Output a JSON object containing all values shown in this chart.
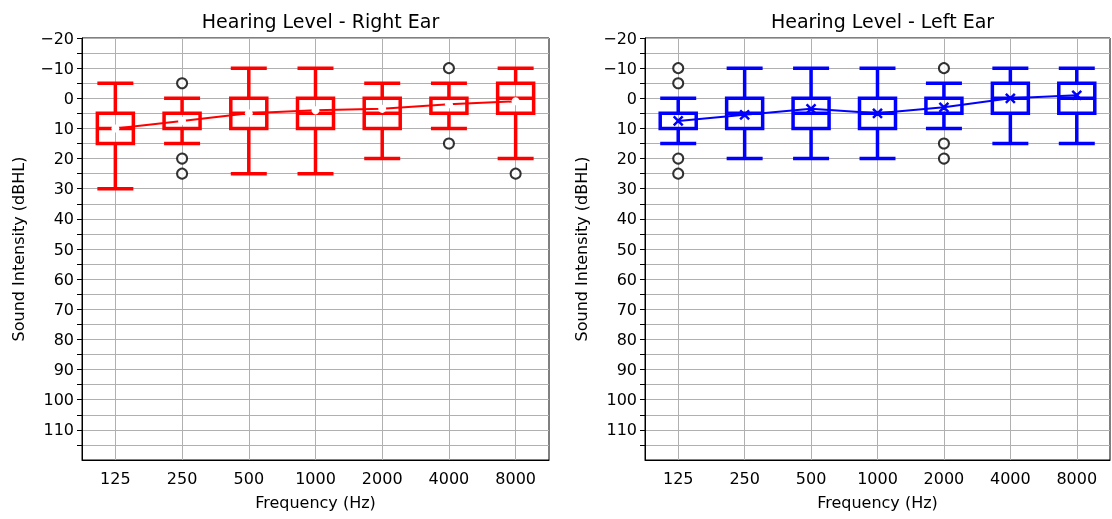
{
  "chart_data": [
    {
      "type": "box",
      "title": "Hearing Level - Right Ear",
      "xlabel": "Frequency (Hz)",
      "ylabel": "Sound Intensity (dBHL)",
      "categories": [
        "125",
        "250",
        "500",
        "1000",
        "2000",
        "4000",
        "8000"
      ],
      "ylim": [
        120,
        -20
      ],
      "yticks": [
        {
          "value": -20,
          "label": "−20"
        },
        {
          "value": -15,
          "label": null
        },
        {
          "value": -10,
          "label": "−10"
        },
        {
          "value": -5,
          "label": null
        },
        0,
        {
          "value": 5,
          "label": null
        },
        10,
        {
          "value": 15,
          "label": null
        },
        20,
        {
          "value": 25,
          "label": null
        },
        30,
        {
          "value": 35,
          "label": null
        },
        40,
        {
          "value": 45,
          "label": null
        },
        50,
        {
          "value": 55,
          "label": null
        },
        60,
        {
          "value": 65,
          "label": null
        },
        70,
        {
          "value": 75,
          "label": null
        },
        80,
        {
          "value": 85,
          "label": null
        },
        90,
        {
          "value": 95,
          "label": null
        },
        100,
        {
          "value": 105,
          "label": null
        },
        110,
        {
          "value": 115,
          "label": null
        }
      ],
      "grid": true,
      "series": [
        {
          "type": "box",
          "color": "#ff0000",
          "boxes": [
            {
              "low": 30,
              "q1": 15,
              "median": 10,
              "q3": 5,
              "high": -5
            },
            {
              "low": 15,
              "q1": 10,
              "median": 5,
              "q3": 5,
              "high": 0,
              "outliers": [
                -5,
                20,
                25
              ]
            },
            {
              "low": 25,
              "q1": 10,
              "median": 5,
              "q3": 0,
              "high": -10
            },
            {
              "low": 25,
              "q1": 10,
              "median": 5,
              "q3": 0,
              "high": -10
            },
            {
              "low": 20,
              "q1": 10,
              "median": 5,
              "q3": 0,
              "high": -5
            },
            {
              "low": 10,
              "q1": 5,
              "median": 5,
              "q3": 0,
              "high": -5,
              "outliers": [
                -10,
                15
              ]
            },
            {
              "low": 20,
              "q1": 5,
              "median": 0,
              "q3": -5,
              "high": -10,
              "outliers": [
                25
              ]
            }
          ]
        },
        {
          "type": "line",
          "color": "#ff0000",
          "marker": "circle",
          "values": [
            10,
            7.5,
            5,
            4,
            3.5,
            2,
            1
          ]
        }
      ]
    },
    {
      "type": "box",
      "title": "Hearing Level - Left Ear",
      "xlabel": "Frequency (Hz)",
      "ylabel": "Sound Intensity (dBHL)",
      "categories": [
        "125",
        "250",
        "500",
        "1000",
        "2000",
        "4000",
        "8000"
      ],
      "ylim": [
        120,
        -20
      ],
      "yticks": [
        {
          "value": -20,
          "label": "−20"
        },
        {
          "value": -15,
          "label": null
        },
        {
          "value": -10,
          "label": "−10"
        },
        {
          "value": -5,
          "label": null
        },
        0,
        {
          "value": 5,
          "label": null
        },
        10,
        {
          "value": 15,
          "label": null
        },
        20,
        {
          "value": 25,
          "label": null
        },
        30,
        {
          "value": 35,
          "label": null
        },
        40,
        {
          "value": 45,
          "label": null
        },
        50,
        {
          "value": 55,
          "label": null
        },
        60,
        {
          "value": 65,
          "label": null
        },
        70,
        {
          "value": 75,
          "label": null
        },
        80,
        {
          "value": 85,
          "label": null
        },
        90,
        {
          "value": 95,
          "label": null
        },
        100,
        {
          "value": 105,
          "label": null
        },
        110,
        {
          "value": 115,
          "label": null
        }
      ],
      "grid": true,
      "series": [
        {
          "type": "box",
          "color": "#0000ff",
          "boxes": [
            {
              "low": 15,
              "q1": 10,
              "median": 5,
              "q3": 5,
              "high": 0,
              "outliers": [
                -10,
                -5,
                20,
                25
              ]
            },
            {
              "low": 20,
              "q1": 10,
              "median": 5,
              "q3": 0,
              "high": -10
            },
            {
              "low": 20,
              "q1": 10,
              "median": 5,
              "q3": 0,
              "high": -10
            },
            {
              "low": 20,
              "q1": 10,
              "median": 5,
              "q3": 0,
              "high": -10
            },
            {
              "low": 10,
              "q1": 5,
              "median": 5,
              "q3": 0,
              "high": -5,
              "outliers": [
                -10,
                15,
                20
              ]
            },
            {
              "low": 15,
              "q1": 5,
              "median": 0,
              "q3": -5,
              "high": -10
            },
            {
              "low": 15,
              "q1": 5,
              "median": 0,
              "q3": -5,
              "high": -10
            }
          ]
        },
        {
          "type": "line",
          "color": "#0000ff",
          "marker": "cross",
          "values": [
            7.5,
            5.5,
            3.5,
            5,
            3,
            0,
            -1
          ]
        }
      ]
    }
  ]
}
